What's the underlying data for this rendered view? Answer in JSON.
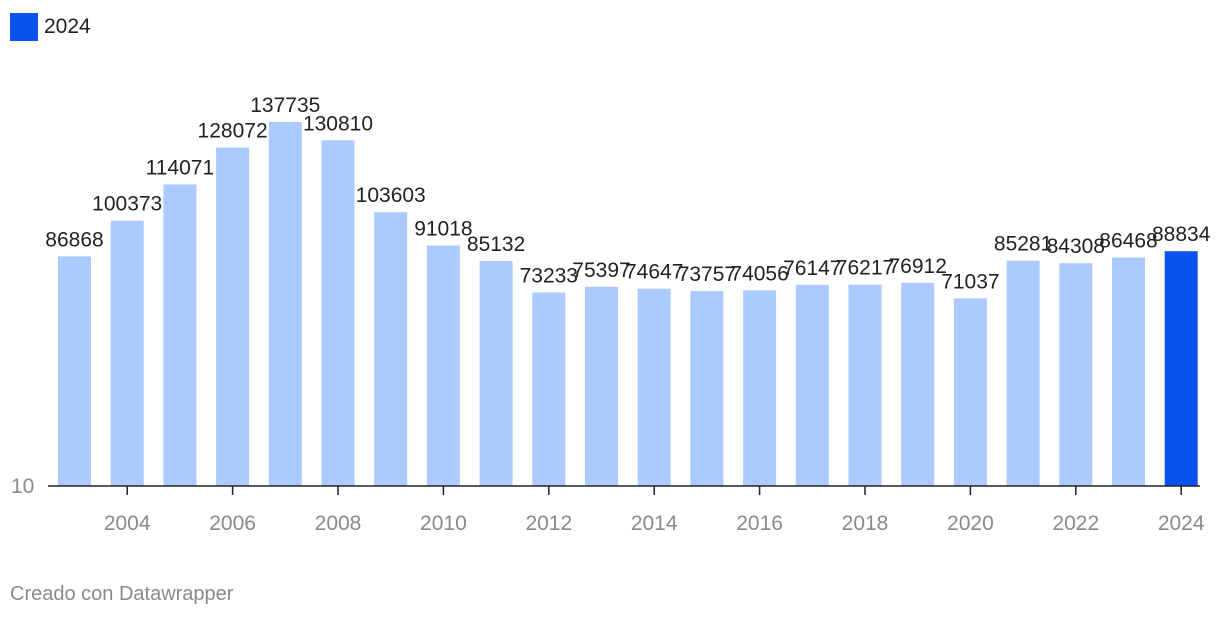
{
  "chart_data": {
    "type": "bar",
    "categories": [
      "2003",
      "2004",
      "2005",
      "2006",
      "2007",
      "2008",
      "2009",
      "2010",
      "2011",
      "2012",
      "2013",
      "2014",
      "2015",
      "2016",
      "2017",
      "2018",
      "2019",
      "2020",
      "2021",
      "2022",
      "2023",
      "2024"
    ],
    "values": [
      86868,
      100373,
      114071,
      128072,
      137735,
      130810,
      103603,
      91018,
      85132,
      73233,
      75397,
      74647,
      73757,
      74056,
      76147,
      76217,
      76912,
      71037,
      85281,
      84308,
      86468,
      88834
    ],
    "x_tick_labels": [
      "2004",
      "2006",
      "2008",
      "2010",
      "2012",
      "2014",
      "2016",
      "2018",
      "2020",
      "2022",
      "2024"
    ],
    "y_tick_labels": [
      "10"
    ],
    "ylim": [
      10,
      140000
    ],
    "highlight_category": "2024",
    "legend": {
      "label": "2024",
      "position": "top-left"
    },
    "colors": {
      "bar": "#abcbff",
      "highlight": "#0a52ef",
      "axis": "#222222",
      "tick_text": "#8a8a8a",
      "value_text": "#222222"
    },
    "grid": false
  },
  "footer": {
    "credit": "Creado con Datawrapper"
  }
}
